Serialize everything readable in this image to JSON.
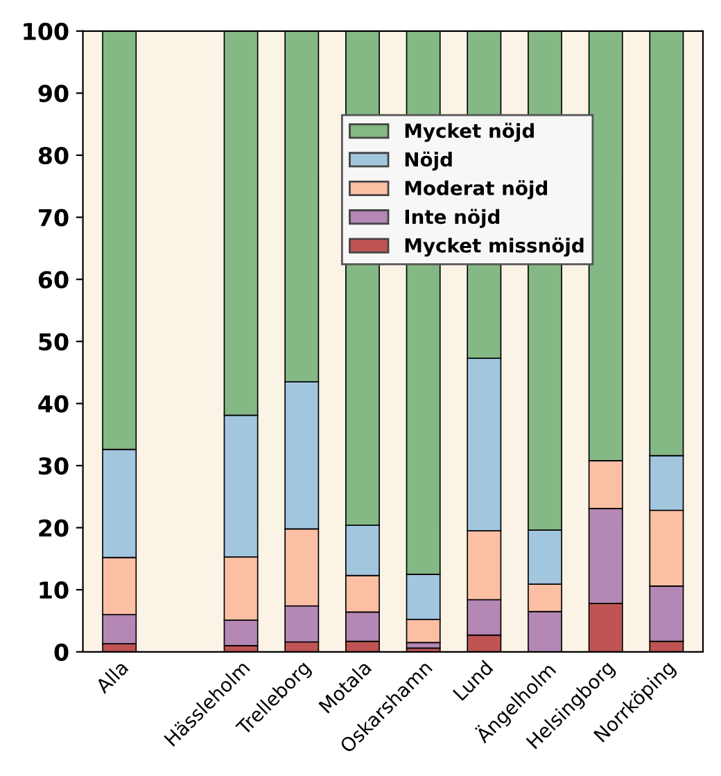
{
  "chart_data": {
    "type": "bar",
    "stacked": true,
    "categories": [
      "Alla",
      null,
      "Hässleholm",
      "Trelleborg",
      "Motala",
      "Oskarshamn",
      "Lund",
      "Ängelholm",
      "Helsingborg",
      "Norrköping"
    ],
    "series": [
      {
        "name": "Mycket missnöjd",
        "color": "#c05454",
        "values": [
          1.3,
          null,
          1.0,
          1.6,
          1.7,
          0.6,
          2.7,
          0,
          7.8,
          1.7
        ]
      },
      {
        "name": "Inte nöjd",
        "color": "#b487b4",
        "values": [
          4.7,
          null,
          4.1,
          5.8,
          4.7,
          0.9,
          5.7,
          6.5,
          15.3,
          8.9
        ]
      },
      {
        "name": "Moderat nöjd",
        "color": "#fbbfa4",
        "values": [
          9.2,
          null,
          10.2,
          12.4,
          5.9,
          3.7,
          11.1,
          4.4,
          7.7,
          12.2
        ]
      },
      {
        "name": "Nöjd",
        "color": "#a3c6df",
        "values": [
          17.4,
          null,
          22.8,
          23.7,
          8.1,
          7.3,
          27.8,
          8.7,
          0,
          8.8
        ]
      },
      {
        "name": "Mycket nöjd",
        "color": "#84b884",
        "values": [
          67.4,
          null,
          61.9,
          56.5,
          79.6,
          87.5,
          52.7,
          80.4,
          69.2,
          68.4
        ]
      }
    ],
    "ylim": [
      0,
      100
    ],
    "yticks": [
      0,
      10,
      20,
      30,
      40,
      50,
      60,
      70,
      80,
      90,
      100
    ],
    "grid": false,
    "legend": "top"
  }
}
